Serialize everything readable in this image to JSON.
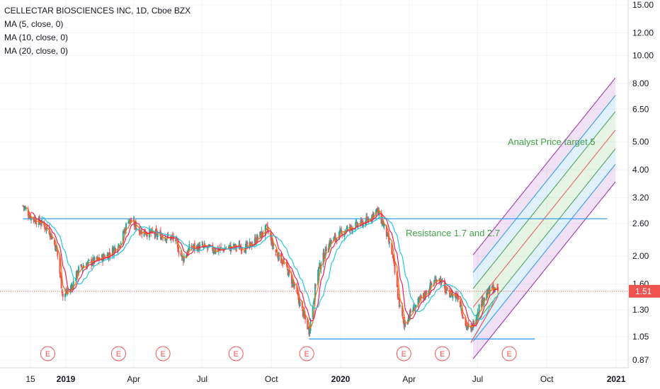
{
  "header": {
    "title": "CELLECTAR BIOSCIENCES INC, 1D, Cboe BZX",
    "indicators": [
      "MA (5, close, 0)",
      "MA (10, close, 0)",
      "MA (20, close, 0)"
    ]
  },
  "annotations": {
    "target": "Analyst Price target 5",
    "resistance": "Resistance 1.7 and 2.7"
  },
  "colors": {
    "up": "#26a69a",
    "down": "#ef5350",
    "ma5": "#ff6d00",
    "ma10": "#e91e63",
    "ma20": "#26c6da",
    "line": "#2196f3",
    "note": "#43a047",
    "price_tag": "#ef5350",
    "earnings": "#ef5350"
  },
  "chart_data": {
    "type": "candlestick",
    "scale": "log",
    "symbol": "CELLECTAR BIOSCIENCES INC",
    "interval": "1D",
    "exchange": "Cboe BZX",
    "ylim": [
      0.8,
      15
    ],
    "y_ticks": [
      "15.00",
      "12.00",
      "10.00",
      "8.00",
      "6.50",
      "5.00",
      "4.00",
      "3.20",
      "2.60",
      "2.00",
      "1.60",
      "1.30",
      "1.05",
      "0.87"
    ],
    "x_ticks": [
      {
        "label": "15",
        "date": "2018-11-15",
        "bold": false
      },
      {
        "label": "2019",
        "date": "2019-01-01",
        "bold": true
      },
      {
        "label": "Apr",
        "date": "2019-04-01",
        "bold": false
      },
      {
        "label": "Jul",
        "date": "2019-07-01",
        "bold": false
      },
      {
        "label": "Oct",
        "date": "2019-10-01",
        "bold": false
      },
      {
        "label": "2020",
        "date": "2020-01-01",
        "bold": true
      },
      {
        "label": "Apr",
        "date": "2020-04-01",
        "bold": false
      },
      {
        "label": "Jul",
        "date": "2020-07-01",
        "bold": false
      },
      {
        "label": "Oct",
        "date": "2020-10-01",
        "bold": false
      },
      {
        "label": "2021",
        "date": "2021-01-01",
        "bold": true
      }
    ],
    "last_price": "1.51",
    "price_path": [
      [
        "2018-11-05",
        3.0
      ],
      [
        "2018-11-15",
        2.75
      ],
      [
        "2018-11-30",
        2.6
      ],
      [
        "2018-12-10",
        2.45
      ],
      [
        "2018-12-20",
        2.1
      ],
      [
        "2018-12-28",
        1.45
      ],
      [
        "2019-01-08",
        1.55
      ],
      [
        "2019-01-18",
        1.8
      ],
      [
        "2019-02-01",
        1.9
      ],
      [
        "2019-02-15",
        1.95
      ],
      [
        "2019-03-01",
        2.05
      ],
      [
        "2019-03-15",
        2.25
      ],
      [
        "2019-03-25",
        2.7
      ],
      [
        "2019-04-10",
        2.45
      ],
      [
        "2019-04-25",
        2.4
      ],
      [
        "2019-05-10",
        2.35
      ],
      [
        "2019-05-25",
        2.3
      ],
      [
        "2019-06-05",
        1.95
      ],
      [
        "2019-06-15",
        2.15
      ],
      [
        "2019-07-01",
        2.15
      ],
      [
        "2019-07-20",
        2.1
      ],
      [
        "2019-08-10",
        2.15
      ],
      [
        "2019-09-01",
        2.15
      ],
      [
        "2019-09-15",
        2.35
      ],
      [
        "2019-09-25",
        2.5
      ],
      [
        "2019-10-05",
        2.1
      ],
      [
        "2019-10-20",
        1.85
      ],
      [
        "2019-11-01",
        1.55
      ],
      [
        "2019-11-15",
        1.2
      ],
      [
        "2019-11-20",
        1.1
      ],
      [
        "2019-12-01",
        1.75
      ],
      [
        "2019-12-15",
        2.2
      ],
      [
        "2020-01-05",
        2.45
      ],
      [
        "2020-01-20",
        2.55
      ],
      [
        "2020-02-05",
        2.65
      ],
      [
        "2020-02-18",
        2.9
      ],
      [
        "2020-03-01",
        2.45
      ],
      [
        "2020-03-10",
        2.0
      ],
      [
        "2020-03-18",
        1.4
      ],
      [
        "2020-03-25",
        1.15
      ],
      [
        "2020-04-05",
        1.3
      ],
      [
        "2020-04-20",
        1.45
      ],
      [
        "2020-05-01",
        1.6
      ],
      [
        "2020-05-10",
        1.7
      ],
      [
        "2020-05-20",
        1.5
      ],
      [
        "2020-06-05",
        1.45
      ],
      [
        "2020-06-15",
        1.15
      ],
      [
        "2020-06-22",
        1.1
      ],
      [
        "2020-07-01",
        1.3
      ],
      [
        "2020-07-10",
        1.45
      ],
      [
        "2020-07-20",
        1.55
      ],
      [
        "2020-07-28",
        1.51
      ]
    ],
    "drawings": {
      "resistance_line": {
        "from": [
          "2018-11-05",
          2.7
        ],
        "to": [
          "2020-12-20",
          2.7
        ]
      },
      "support_line": {
        "from": [
          "2019-11-20",
          1.03
        ],
        "to": [
          "2020-09-15",
          1.03
        ]
      },
      "earnings_dates": [
        "2018-12-08",
        "2019-03-12",
        "2019-05-10",
        "2019-08-15",
        "2019-11-17",
        "2020-03-25",
        "2020-05-15",
        "2020-08-12"
      ],
      "parallel_channel": {
        "start": "2020-06-25",
        "end": "2020-12-31",
        "center_start": 1.33,
        "center_end": 5.5,
        "bands": [
          1.32,
          1.16,
          1.0,
          0.86,
          0.76
        ]
      }
    }
  }
}
